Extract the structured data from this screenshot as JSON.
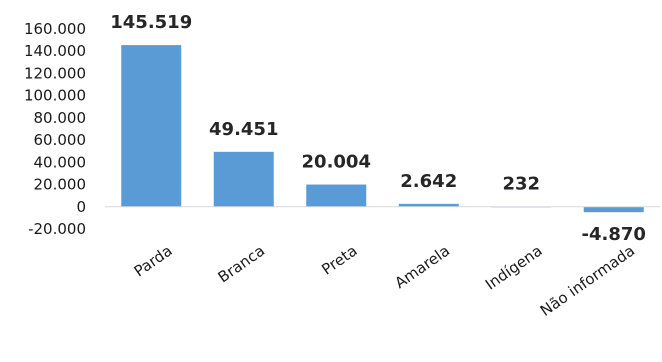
{
  "chart_data": {
    "type": "bar",
    "categories": [
      "Parda",
      "Branca",
      "Preta",
      "Amarela",
      "Indígena",
      "Não informada"
    ],
    "values": [
      145519,
      49451,
      20004,
      2642,
      232,
      -4870
    ],
    "data_labels": [
      "145.519",
      "49.451",
      "20.004",
      "2.642",
      "232",
      "-4.870"
    ],
    "ylim": [
      -20000,
      160000
    ],
    "yticks": [
      -20000,
      0,
      20000,
      40000,
      60000,
      80000,
      100000,
      120000,
      140000,
      160000
    ],
    "ytick_labels": [
      "-20.000",
      "0",
      "20.000",
      "40.000",
      "60.000",
      "80.000",
      "100.000",
      "120.000",
      "140.000",
      "160.000"
    ],
    "grid": false,
    "legend": "none",
    "colors": {
      "bar": "#5b9bd5",
      "axis": "#d9d9d9"
    }
  }
}
